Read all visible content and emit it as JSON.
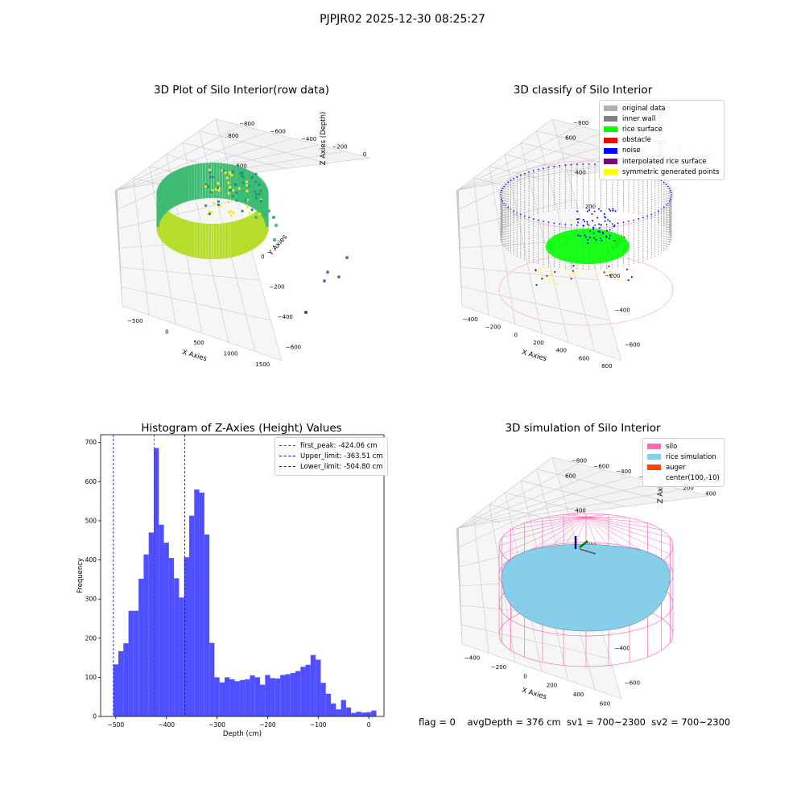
{
  "suptitle": "PJPJR02 2025-12-30 08:25:27",
  "panels": {
    "p1": {
      "title": "3D Plot of Silo Interior(row data)",
      "xlabel": "X Axies",
      "ylabel": "Y Axies",
      "zlabel": "Z Axies (Depth)",
      "xticks": [
        "-500",
        "0",
        "500",
        "1000",
        "1500"
      ],
      "yticks": [
        "-600",
        "-400",
        "-200",
        "0",
        "200",
        "400",
        "600",
        "800"
      ],
      "zticks": [
        "0",
        "-200",
        "-400",
        "-600",
        "-800"
      ]
    },
    "p2": {
      "title": "3D classify of Silo Interior",
      "xlabel": "X Axies",
      "ylabel": "Y Axies",
      "zlabel": "Z Axies (Depth)",
      "xticks": [
        "-400",
        "-200",
        "0",
        "200",
        "400",
        "600",
        "800"
      ],
      "yticks": [
        "-600",
        "-400",
        "-200",
        "0",
        "200",
        "400",
        "600"
      ],
      "zticks": [
        "200",
        "0",
        "-200",
        "-400",
        "-600",
        "-800"
      ],
      "zticks_partial": "00",
      "legend": [
        {
          "label": "original data",
          "color": "#b0b0b0"
        },
        {
          "label": "inner wall",
          "color": "#808080"
        },
        {
          "label": "rice surface",
          "color": "#00ff00"
        },
        {
          "label": "obstacle",
          "color": "#ff0000"
        },
        {
          "label": "noise",
          "color": "#0000ff"
        },
        {
          "label": "interpolated rice surface",
          "color": "#800080"
        },
        {
          "label": "symmetric generated points",
          "color": "#ffff00"
        }
      ]
    },
    "p4": {
      "title": "3D simulation of Silo Interior",
      "xlabel": "X Axies",
      "ylabel": "Y Axies",
      "zlabel": "Z Axies (Depth)",
      "xticks": [
        "-400",
        "-200",
        "0",
        "200",
        "400",
        "600"
      ],
      "yticks": [
        "-600",
        "-400",
        "-200",
        "0",
        "200",
        "400",
        "600"
      ],
      "zticks": [
        "400",
        "200",
        "0",
        "-200",
        "-400",
        "-600",
        "-800"
      ],
      "legend": [
        {
          "label": "silo",
          "color": "#ff69b4"
        },
        {
          "label": "rice simulation",
          "color": "#87ceeb"
        },
        {
          "label": "auger",
          "color": "#ff4500"
        },
        {
          "label": "center(100,-10)",
          "color": ""
        }
      ]
    }
  },
  "chart_data": [
    {
      "type": "heatmap",
      "note_kind": "3d-scatter",
      "title": "3D Plot of Silo Interior(row data)",
      "xlabel": "X Axies",
      "ylabel": "Y Axies",
      "zlabel": "Z Axies (Depth)",
      "xlim": [
        -700,
        1700
      ],
      "ylim": [
        -700,
        900
      ],
      "zlim": [
        -900,
        0
      ]
    },
    {
      "type": "heatmap",
      "note_kind": "3d-scatter",
      "title": "3D classify of Silo Interior",
      "xlabel": "X Axies",
      "ylabel": "Y Axies",
      "zlabel": "Z Axies (Depth)",
      "series": [
        {
          "name": "original data"
        },
        {
          "name": "inner wall"
        },
        {
          "name": "rice surface"
        },
        {
          "name": "obstacle"
        },
        {
          "name": "noise"
        },
        {
          "name": "interpolated rice surface"
        },
        {
          "name": "symmetric generated points"
        }
      ]
    },
    {
      "type": "bar",
      "title": "Histogram of Z-Axies (Height) Values",
      "xlabel": "Depth (cm)",
      "ylabel": "Frequency",
      "xlim": [
        -530,
        30
      ],
      "ylim": [
        0,
        720
      ],
      "bin_start": -505,
      "bin_width": 10,
      "color": "#4040ff",
      "values": [
        133,
        167,
        187,
        270,
        270,
        352,
        414,
        470,
        686,
        490,
        444,
        405,
        353,
        304,
        407,
        513,
        580,
        572,
        465,
        188,
        100,
        87,
        100,
        95,
        90,
        93,
        95,
        105,
        100,
        81,
        106,
        98,
        97,
        106,
        108,
        111,
        116,
        127,
        132,
        157,
        145,
        86,
        58,
        33,
        18,
        42,
        23,
        9,
        12,
        10,
        11,
        15
      ],
      "xticks": [
        -500,
        -400,
        -300,
        -200,
        -100,
        0
      ],
      "yticks": [
        0,
        100,
        200,
        300,
        400,
        500,
        600,
        700
      ],
      "vlines": [
        {
          "name": "first_peak: -424.06 cm",
          "x": -424.06,
          "color": "#ff0000"
        },
        {
          "name": "Upper_limit: -363.51 cm",
          "x": -363.51,
          "color": "#0000cc"
        },
        {
          "name": "Lower_limit: -504.80 cm",
          "x": -504.8,
          "color": "#0000cc"
        }
      ]
    },
    {
      "type": "heatmap",
      "note_kind": "3d-surface",
      "title": "3D simulation of Silo Interior",
      "xlabel": "X Axies",
      "ylabel": "Y Axies",
      "zlabel": "Z Axies (Depth)",
      "series": [
        {
          "name": "silo"
        },
        {
          "name": "rice simulation"
        },
        {
          "name": "auger"
        },
        {
          "name": "center(100,-10)"
        }
      ]
    }
  ],
  "hist": {
    "title": "Histogram of Z-Axies (Height) Values",
    "legend": [
      {
        "label": "first_peak: -424.06 cm",
        "color": "#ff0000"
      },
      {
        "label": "Upper_limit: -363.51 cm",
        "color": "#0000cc"
      },
      {
        "label": "Lower_limit: -504.80 cm",
        "color": "#0000cc"
      }
    ]
  },
  "footer": {
    "flag": "flag = 0",
    "avg": "avgDepth = 376 cm",
    "sv1": "sv1 = 700~2300",
    "sv2": "sv2 = 700~2300"
  }
}
